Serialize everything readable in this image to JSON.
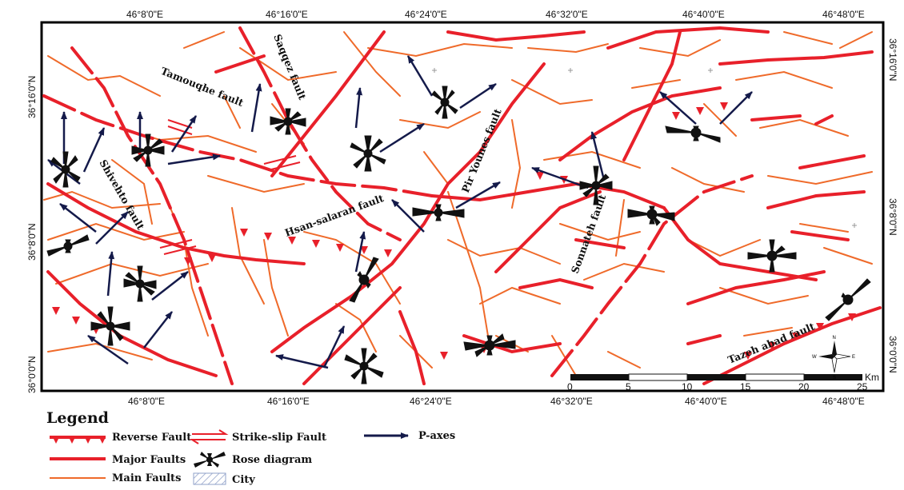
{
  "map": {
    "top_longitudes": [
      "46°8'0\"E",
      "46°16'0\"E",
      "46°24'0\"E",
      "46°32'0\"E",
      "46°40'0\"E",
      "46°48'0\"E"
    ],
    "bottom_longitudes": [
      "46°8'0\"E",
      "46°16'0\"E",
      "46°24'0\"E",
      "46°32'0\"E",
      "46°40'0\"E",
      "46°48'0\"E"
    ],
    "left_latitudes": [
      "36°16'0\"N",
      "36°8'0\"N",
      "36°0'0\"N"
    ],
    "right_latitudes": [
      "36°16'0\"N",
      "36°8'0\"N",
      "36°0'0\"N"
    ]
  },
  "faults": {
    "tamouqhe": "Tamouqhe fault",
    "saqqez": "Saqqez fault",
    "pir_younes": "Pir Younes fault",
    "shivehto": "Shivehto fault",
    "hsan_salaran": "Hsan-salaran fault",
    "sonnateh": "Sonnateh fault",
    "tazeh_abad": "Tazeh abad fault"
  },
  "scale_bar": {
    "ticks": [
      "0",
      "5",
      "10",
      "15",
      "20",
      "25"
    ],
    "unit": "Km"
  },
  "compass": {
    "n": "N",
    "s": "S",
    "e": "E",
    "w": "W"
  },
  "legend": {
    "title": "Legend",
    "items": {
      "reverse": "Reverse Fault",
      "major": "Major Faults",
      "main": "Main Faults",
      "strike": "Strike-slip Fault",
      "rose": "Rose diagram",
      "city": "City",
      "paxes": "P-axes"
    }
  },
  "colors": {
    "major_fault": "#e8202a",
    "main_fault": "#ef6a2a",
    "p_axes": "#141a4a",
    "rose": "#111111",
    "frame": "#000000"
  }
}
